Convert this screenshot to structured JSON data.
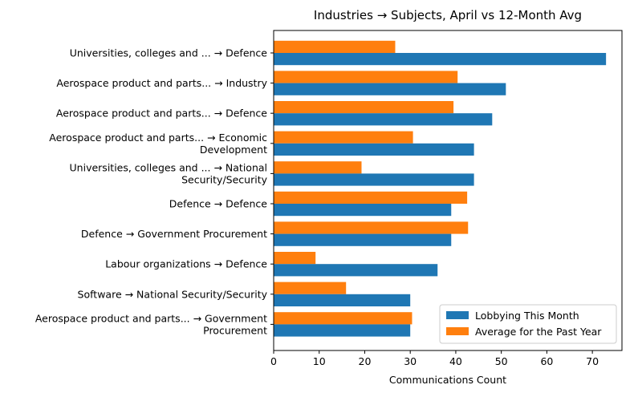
{
  "chart_data": {
    "type": "bar",
    "orientation": "horizontal",
    "title": "Industries → Subjects, April vs 12-Month Avg",
    "xlabel": "Communications Count",
    "ylabel": "",
    "xlim": [
      0,
      76.5
    ],
    "xticks": [
      0,
      10,
      20,
      30,
      40,
      50,
      60,
      70
    ],
    "grid": false,
    "legend_position": "lower-right",
    "categories": [
      [
        "Universities, colleges and ... → Defence"
      ],
      [
        "Aerospace product and parts... → Industry"
      ],
      [
        "Aerospace product and parts... → Defence"
      ],
      [
        "Aerospace product and parts... → Economic",
        "Development"
      ],
      [
        "Universities, colleges and ... → National",
        "Security/Security"
      ],
      [
        "Defence → Defence"
      ],
      [
        "Defence → Government Procurement"
      ],
      [
        "Labour organizations → Defence"
      ],
      [
        "Software → National Security/Security"
      ],
      [
        "Aerospace product and parts... → Government",
        "Procurement"
      ]
    ],
    "series": [
      {
        "name": "Lobbying This Month",
        "color": "#1f77b4",
        "values": [
          73,
          51,
          48,
          44,
          44,
          39,
          39,
          36,
          30,
          30
        ]
      },
      {
        "name": "Average for the Past Year",
        "color": "#ff7f0e",
        "values": [
          26.7,
          40.4,
          39.5,
          30.6,
          19.3,
          42.5,
          42.7,
          9.2,
          15.9,
          30.4
        ]
      }
    ]
  }
}
